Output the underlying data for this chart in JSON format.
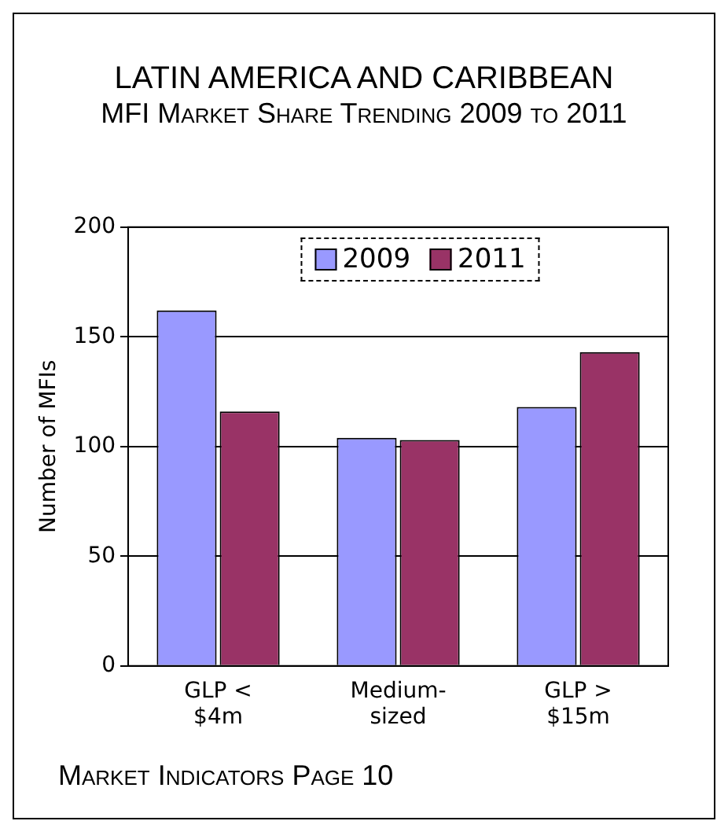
{
  "chart_data": {
    "type": "bar",
    "title": "LATIN AMERICA AND CARIBBEAN",
    "subtitle": "MFI Market Share Trending 2009 to 2011",
    "ylabel": "Number of MFIs",
    "categories": [
      "GLP < $4m",
      "Medium-sized",
      "GLP > $15m"
    ],
    "series": [
      {
        "name": "2009",
        "color": "#9999ff",
        "values": [
          162,
          104,
          118
        ]
      },
      {
        "name": "2011",
        "color": "#993366",
        "values": [
          116,
          103,
          143
        ]
      }
    ],
    "ylim": [
      0,
      200
    ],
    "yticks": [
      0,
      50,
      100,
      150,
      200
    ],
    "grid": "y",
    "legend": "top",
    "annotations": [
      "Market Indicators Page 10"
    ]
  }
}
